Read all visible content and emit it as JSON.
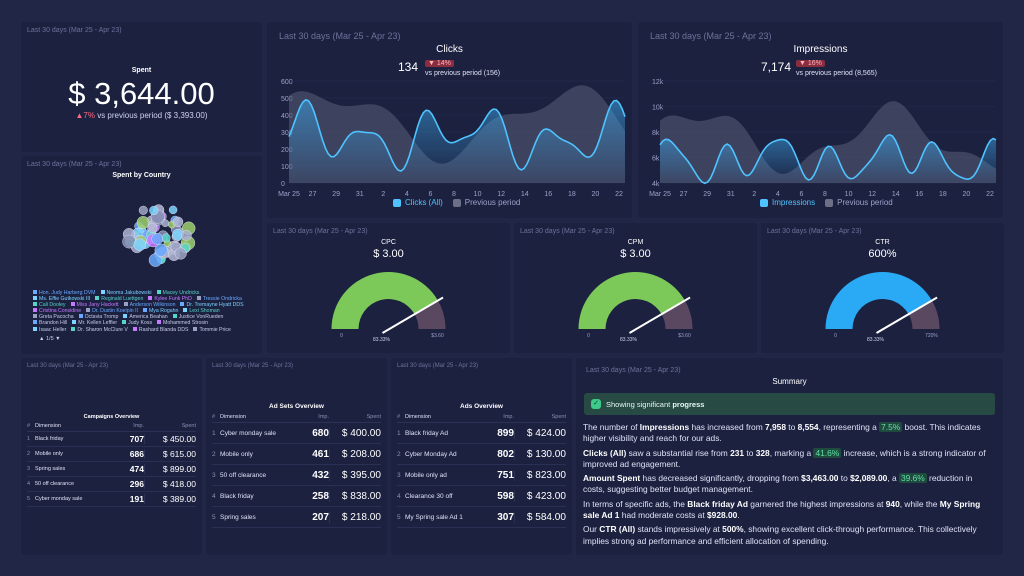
{
  "date_range": "Last 30 days (Mar 25 - Apr 23)",
  "spent": {
    "title": "Spent",
    "value": "$ 3,644.00",
    "change": "7%",
    "vs": "vs previous period ($ 3,393.00)"
  },
  "country": {
    "title": "Spent by Country",
    "legend": [
      [
        "Hon. Judy Harberg DVM",
        "Neoma Jakubowski",
        "Macey Undricks"
      ],
      [
        "Ms. Effie Gutkowski III",
        "Reginald Luettgen",
        "Kylee Funk PhD",
        "Tressie Ondricka"
      ],
      [
        "Cali Dooley",
        "Miss Jany Hackett",
        "Anderson Wilkinson",
        "Dr. Tremayne Hyatt DDS"
      ],
      [
        "Cristina Considine",
        "Dr. Dustin Koelpin II",
        "Mya Rogahn",
        "Lexi Shoman"
      ],
      [
        "Greta Pacocha",
        "Octavia Tromp",
        "America Beahan",
        "Justice VonRueden"
      ],
      [
        "Brandon Hill",
        "Mr. Kellen Leffler",
        "Judy Koss",
        "Mohammed Strosin"
      ],
      [
        "Isaac Heller",
        "Dr. Sharon McClure V",
        "Rashard Blanda DDS",
        "Tommie Price"
      ]
    ],
    "legend_colors": [
      "#6aa9ff",
      "#7cd3ff",
      "#56d4c8",
      "#c779ff",
      "#9a9fc4"
    ],
    "page": "1/5"
  },
  "clicks": {
    "title": "Clicks",
    "value": "134",
    "change": "14%",
    "vs": "vs previous period (156)",
    "y_ticks": [
      "600",
      "500",
      "400",
      "300",
      "200",
      "100",
      "0"
    ],
    "x_ticks": [
      "Mar 25",
      "27",
      "29",
      "31",
      "2",
      "4",
      "6",
      "8",
      "10",
      "12",
      "14",
      "16",
      "18",
      "20",
      "22"
    ],
    "legend_current": "Clicks (All)",
    "legend_prev": "Previous period"
  },
  "impressions": {
    "title": "Impressions",
    "value": "7,174",
    "change": "16%",
    "vs": "vs previous period (8,565)",
    "y_ticks": [
      "12k",
      "10k",
      "8k",
      "6k",
      "4k"
    ],
    "x_ticks": [
      "Mar 25",
      "27",
      "29",
      "31",
      "2",
      "4",
      "6",
      "8",
      "10",
      "12",
      "14",
      "16",
      "18",
      "20",
      "22"
    ],
    "legend_current": "Impressions",
    "legend_prev": "Previous period"
  },
  "gauges": [
    {
      "title": "CPC",
      "value": "$ 3.00",
      "min": "0",
      "max": "$3.60",
      "marker": "83.33%",
      "fraction": 0.8333,
      "color": "#7cc95a"
    },
    {
      "title": "CPM",
      "value": "$ 3.00",
      "min": "0",
      "max": "$3.60",
      "marker": "83.33%",
      "fraction": 0.8333,
      "color": "#7cc95a"
    },
    {
      "title": "CTR",
      "value": "600%",
      "min": "0",
      "max": "720%",
      "marker": "83.33%",
      "fraction": 0.8333,
      "color": "#2aa9f5"
    }
  ],
  "campaigns": {
    "title": "Campaigns Overview",
    "col_dim": "Dimension",
    "col_imp": "Imp.",
    "col_spent": "Spent",
    "rows": [
      [
        "1",
        "Black friday",
        "707",
        "$ 450.00"
      ],
      [
        "2",
        "Mobile only",
        "686",
        "$ 615.00"
      ],
      [
        "3",
        "Spring sales",
        "474",
        "$ 899.00"
      ],
      [
        "4",
        "50 off clearance",
        "296",
        "$ 418.00"
      ],
      [
        "5",
        "Cyber monday sale",
        "191",
        "$ 389.00"
      ]
    ]
  },
  "adsets": {
    "title": "Ad Sets Overview",
    "col_dim": "Dimension",
    "col_imp": "Imp.",
    "col_spent": "Spent",
    "rows": [
      [
        "1",
        "Cyber monday sale",
        "680",
        "$ 400.00"
      ],
      [
        "2",
        "Mobile only",
        "461",
        "$ 208.00"
      ],
      [
        "3",
        "50 off clearance",
        "432",
        "$ 395.00"
      ],
      [
        "4",
        "Black friday",
        "258",
        "$ 838.00"
      ],
      [
        "5",
        "Spring sales",
        "207",
        "$ 218.00"
      ]
    ]
  },
  "ads": {
    "title": "Ads Overview",
    "col_dim": "Dimension",
    "col_imp": "Imp.",
    "col_spent": "Spent",
    "rows": [
      [
        "1",
        "Black friday Ad",
        "899",
        "$ 424.00"
      ],
      [
        "2",
        "Cyber Monday Ad",
        "802",
        "$ 130.00"
      ],
      [
        "3",
        "Mobile only ad",
        "751",
        "$ 823.00"
      ],
      [
        "4",
        "Clearance 30 off",
        "598",
        "$ 423.00"
      ],
      [
        "5",
        "My Spring sale Ad 1",
        "307",
        "$ 584.00"
      ]
    ]
  },
  "summary": {
    "title": "Summary",
    "banner_prefix": "Showing significant",
    "banner_strong": "progress"
  },
  "colors": {
    "accent": "#4fc3ff",
    "card": "#1c2140",
    "bg": "#222646",
    "positive": "#5fe3a8",
    "negative": "#ff6b81"
  }
}
